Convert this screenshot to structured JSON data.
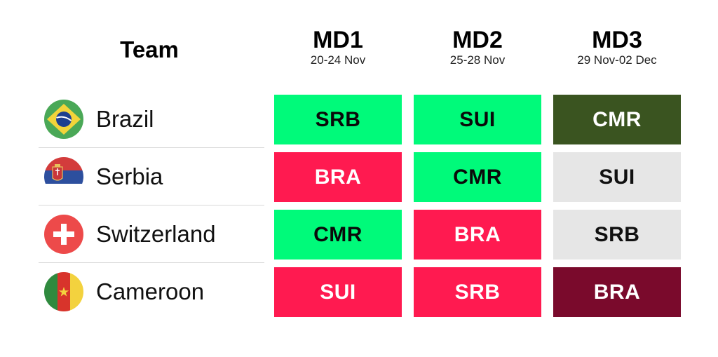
{
  "header": {
    "team_label": "Team",
    "matchdays": [
      {
        "title": "MD1",
        "dates": "20-24 Nov"
      },
      {
        "title": "MD2",
        "dates": "25-28 Nov"
      },
      {
        "title": "MD3",
        "dates": "29 Nov-02 Dec"
      }
    ]
  },
  "teams": [
    {
      "name": "Brazil",
      "flag_icon": "brazil-flag-icon",
      "matches": [
        "SRB",
        "SUI",
        "CMR"
      ]
    },
    {
      "name": "Serbia",
      "flag_icon": "serbia-flag-icon",
      "matches": [
        "BRA",
        "CMR",
        "SUI"
      ]
    },
    {
      "name": "Switzerland",
      "flag_icon": "switzerland-flag-icon",
      "matches": [
        "CMR",
        "BRA",
        "SRB"
      ]
    },
    {
      "name": "Cameroon",
      "flag_icon": "cameroon-flag-icon",
      "matches": [
        "SUI",
        "SRB",
        "BRA"
      ]
    }
  ],
  "colors": {
    "bright_green": "#00fa7a",
    "red_pink": "#ff1a50",
    "light_gray": "#e6e6e6",
    "dark_green": "#3a5420",
    "maroon": "#7a0a2c"
  }
}
